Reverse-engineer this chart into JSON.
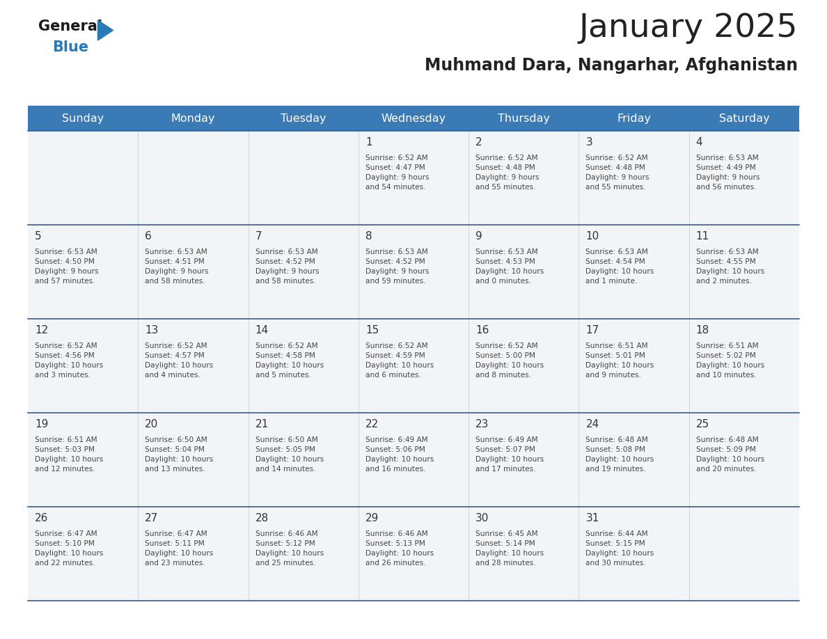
{
  "title": "January 2025",
  "subtitle": "Muhmand Dara, Nangarhar, Afghanistan",
  "days_of_week": [
    "Sunday",
    "Monday",
    "Tuesday",
    "Wednesday",
    "Thursday",
    "Friday",
    "Saturday"
  ],
  "header_bg": "#3a7ab5",
  "header_text": "#ffffff",
  "row_bg": "#f2f5f8",
  "cell_border_color": "#3a5a8a",
  "day_number_color": "#333333",
  "cell_text_color": "#444444",
  "title_color": "#222222",
  "subtitle_color": "#222222",
  "logo_general_color": "#1a1a1a",
  "logo_blue_color": "#2a7ab5",
  "logo_triangle_color": "#2a7ab5",
  "weeks": [
    [
      {
        "day": 0,
        "text": ""
      },
      {
        "day": 0,
        "text": ""
      },
      {
        "day": 0,
        "text": ""
      },
      {
        "day": 1,
        "text": "Sunrise: 6:52 AM\nSunset: 4:47 PM\nDaylight: 9 hours\nand 54 minutes."
      },
      {
        "day": 2,
        "text": "Sunrise: 6:52 AM\nSunset: 4:48 PM\nDaylight: 9 hours\nand 55 minutes."
      },
      {
        "day": 3,
        "text": "Sunrise: 6:52 AM\nSunset: 4:48 PM\nDaylight: 9 hours\nand 55 minutes."
      },
      {
        "day": 4,
        "text": "Sunrise: 6:53 AM\nSunset: 4:49 PM\nDaylight: 9 hours\nand 56 minutes."
      }
    ],
    [
      {
        "day": 5,
        "text": "Sunrise: 6:53 AM\nSunset: 4:50 PM\nDaylight: 9 hours\nand 57 minutes."
      },
      {
        "day": 6,
        "text": "Sunrise: 6:53 AM\nSunset: 4:51 PM\nDaylight: 9 hours\nand 58 minutes."
      },
      {
        "day": 7,
        "text": "Sunrise: 6:53 AM\nSunset: 4:52 PM\nDaylight: 9 hours\nand 58 minutes."
      },
      {
        "day": 8,
        "text": "Sunrise: 6:53 AM\nSunset: 4:52 PM\nDaylight: 9 hours\nand 59 minutes."
      },
      {
        "day": 9,
        "text": "Sunrise: 6:53 AM\nSunset: 4:53 PM\nDaylight: 10 hours\nand 0 minutes."
      },
      {
        "day": 10,
        "text": "Sunrise: 6:53 AM\nSunset: 4:54 PM\nDaylight: 10 hours\nand 1 minute."
      },
      {
        "day": 11,
        "text": "Sunrise: 6:53 AM\nSunset: 4:55 PM\nDaylight: 10 hours\nand 2 minutes."
      }
    ],
    [
      {
        "day": 12,
        "text": "Sunrise: 6:52 AM\nSunset: 4:56 PM\nDaylight: 10 hours\nand 3 minutes."
      },
      {
        "day": 13,
        "text": "Sunrise: 6:52 AM\nSunset: 4:57 PM\nDaylight: 10 hours\nand 4 minutes."
      },
      {
        "day": 14,
        "text": "Sunrise: 6:52 AM\nSunset: 4:58 PM\nDaylight: 10 hours\nand 5 minutes."
      },
      {
        "day": 15,
        "text": "Sunrise: 6:52 AM\nSunset: 4:59 PM\nDaylight: 10 hours\nand 6 minutes."
      },
      {
        "day": 16,
        "text": "Sunrise: 6:52 AM\nSunset: 5:00 PM\nDaylight: 10 hours\nand 8 minutes."
      },
      {
        "day": 17,
        "text": "Sunrise: 6:51 AM\nSunset: 5:01 PM\nDaylight: 10 hours\nand 9 minutes."
      },
      {
        "day": 18,
        "text": "Sunrise: 6:51 AM\nSunset: 5:02 PM\nDaylight: 10 hours\nand 10 minutes."
      }
    ],
    [
      {
        "day": 19,
        "text": "Sunrise: 6:51 AM\nSunset: 5:03 PM\nDaylight: 10 hours\nand 12 minutes."
      },
      {
        "day": 20,
        "text": "Sunrise: 6:50 AM\nSunset: 5:04 PM\nDaylight: 10 hours\nand 13 minutes."
      },
      {
        "day": 21,
        "text": "Sunrise: 6:50 AM\nSunset: 5:05 PM\nDaylight: 10 hours\nand 14 minutes."
      },
      {
        "day": 22,
        "text": "Sunrise: 6:49 AM\nSunset: 5:06 PM\nDaylight: 10 hours\nand 16 minutes."
      },
      {
        "day": 23,
        "text": "Sunrise: 6:49 AM\nSunset: 5:07 PM\nDaylight: 10 hours\nand 17 minutes."
      },
      {
        "day": 24,
        "text": "Sunrise: 6:48 AM\nSunset: 5:08 PM\nDaylight: 10 hours\nand 19 minutes."
      },
      {
        "day": 25,
        "text": "Sunrise: 6:48 AM\nSunset: 5:09 PM\nDaylight: 10 hours\nand 20 minutes."
      }
    ],
    [
      {
        "day": 26,
        "text": "Sunrise: 6:47 AM\nSunset: 5:10 PM\nDaylight: 10 hours\nand 22 minutes."
      },
      {
        "day": 27,
        "text": "Sunrise: 6:47 AM\nSunset: 5:11 PM\nDaylight: 10 hours\nand 23 minutes."
      },
      {
        "day": 28,
        "text": "Sunrise: 6:46 AM\nSunset: 5:12 PM\nDaylight: 10 hours\nand 25 minutes."
      },
      {
        "day": 29,
        "text": "Sunrise: 6:46 AM\nSunset: 5:13 PM\nDaylight: 10 hours\nand 26 minutes."
      },
      {
        "day": 30,
        "text": "Sunrise: 6:45 AM\nSunset: 5:14 PM\nDaylight: 10 hours\nand 28 minutes."
      },
      {
        "day": 31,
        "text": "Sunrise: 6:44 AM\nSunset: 5:15 PM\nDaylight: 10 hours\nand 30 minutes."
      },
      {
        "day": 0,
        "text": ""
      }
    ]
  ]
}
